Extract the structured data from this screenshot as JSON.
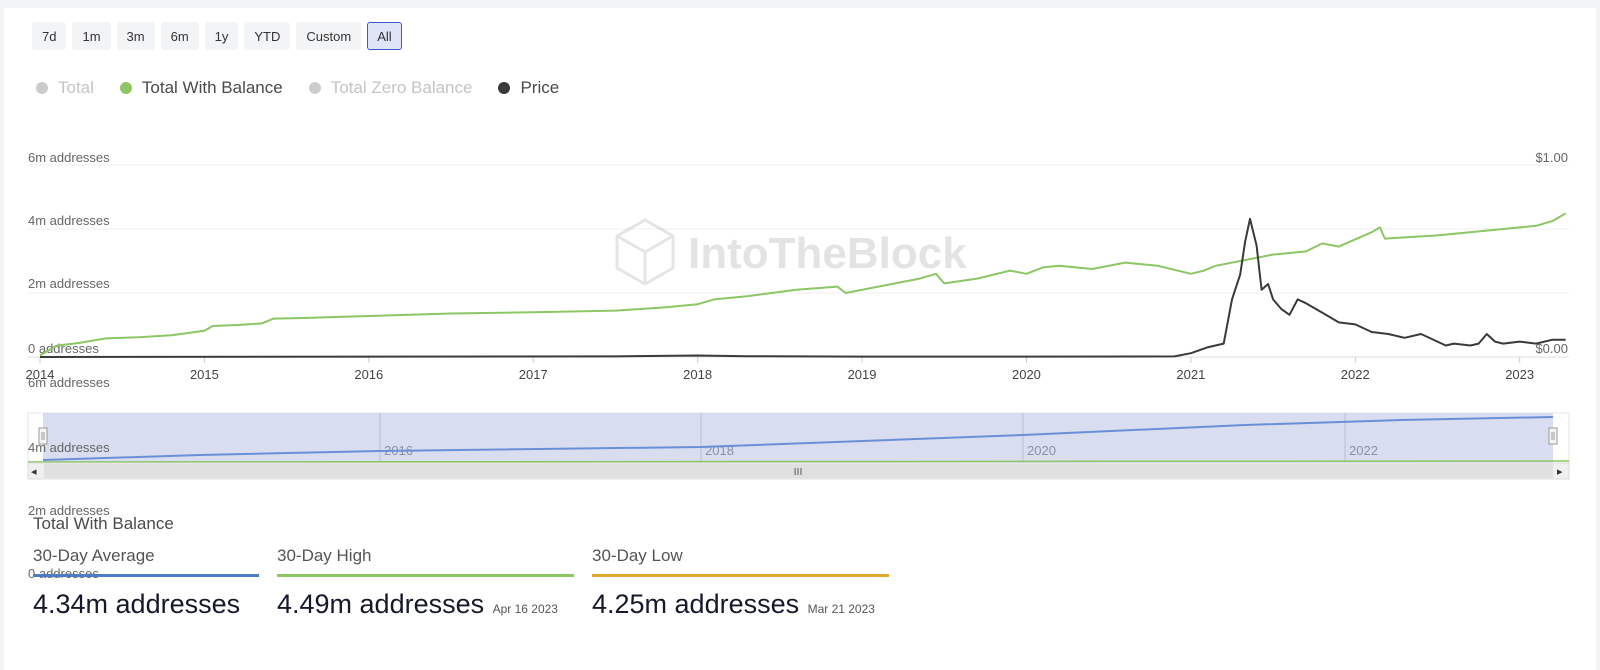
{
  "range_buttons": [
    {
      "label": "7d",
      "active": false
    },
    {
      "label": "1m",
      "active": false
    },
    {
      "label": "3m",
      "active": false
    },
    {
      "label": "6m",
      "active": false
    },
    {
      "label": "1y",
      "active": false
    },
    {
      "label": "YTD",
      "active": false
    },
    {
      "label": "Custom",
      "active": false
    },
    {
      "label": "All",
      "active": true
    }
  ],
  "legend": [
    {
      "label": "Total",
      "enabled": false,
      "color": "#cccccc"
    },
    {
      "label": "Total With Balance",
      "enabled": true,
      "color": "#8cc665"
    },
    {
      "label": "Total Zero Balance",
      "enabled": false,
      "color": "#cccccc"
    },
    {
      "label": "Price",
      "enabled": true,
      "color": "#3a3a3a"
    }
  ],
  "watermark": "IntoTheBlock",
  "navigator_labels": {
    "years": [
      "2016",
      "2018",
      "2020",
      "2022"
    ],
    "ghost_axis": [
      "6m addresses",
      "4m addresses",
      "2m addresses",
      "0 addresses"
    ],
    "scroll_grip": "III",
    "left_arrow": "◂",
    "right_arrow": "▸"
  },
  "stats": {
    "title": "Total With Balance",
    "items": [
      {
        "label": "30-Day Average",
        "value": "4.34m addresses",
        "date": "",
        "color": "#4c7cc4"
      },
      {
        "label": "30-Day High",
        "value": "4.49m addresses",
        "date": "Apr 16 2023",
        "color": "#8cc665"
      },
      {
        "label": "30-Day Low",
        "value": "4.25m addresses",
        "date": "Mar 21 2023",
        "color": "#e0a82e"
      }
    ]
  },
  "chart_data": {
    "type": "line",
    "title": "",
    "xlabel": "",
    "x_ticks": [
      "2014",
      "2015",
      "2016",
      "2017",
      "2018",
      "2019",
      "2020",
      "2021",
      "2022",
      "2023"
    ],
    "x_range": [
      2014,
      2023.3
    ],
    "y_left": {
      "ticks": [
        "0 addresses",
        "2m addresses",
        "4m addresses",
        "6m addresses"
      ],
      "range": [
        0,
        6
      ]
    },
    "y_right": {
      "ticks": [
        "$0.00",
        "$1.00"
      ],
      "range": [
        0,
        1
      ]
    },
    "grid": true,
    "series": [
      {
        "name": "Total With Balance",
        "axis": "left",
        "color": "#8cc665",
        "points": [
          [
            2014.0,
            0.05
          ],
          [
            2014.1,
            0.35
          ],
          [
            2014.25,
            0.45
          ],
          [
            2014.4,
            0.58
          ],
          [
            2014.6,
            0.62
          ],
          [
            2014.8,
            0.68
          ],
          [
            2015.0,
            0.82
          ],
          [
            2015.05,
            0.97
          ],
          [
            2015.2,
            1.0
          ],
          [
            2015.35,
            1.05
          ],
          [
            2015.42,
            1.2
          ],
          [
            2015.6,
            1.22
          ],
          [
            2016.0,
            1.28
          ],
          [
            2016.5,
            1.36
          ],
          [
            2017.0,
            1.4
          ],
          [
            2017.5,
            1.45
          ],
          [
            2017.8,
            1.55
          ],
          [
            2018.0,
            1.65
          ],
          [
            2018.1,
            1.8
          ],
          [
            2018.3,
            1.9
          ],
          [
            2018.6,
            2.1
          ],
          [
            2018.85,
            2.2
          ],
          [
            2018.9,
            2.0
          ],
          [
            2019.2,
            2.3
          ],
          [
            2019.35,
            2.45
          ],
          [
            2019.45,
            2.6
          ],
          [
            2019.5,
            2.3
          ],
          [
            2019.7,
            2.45
          ],
          [
            2019.9,
            2.7
          ],
          [
            2020.0,
            2.6
          ],
          [
            2020.1,
            2.8
          ],
          [
            2020.2,
            2.85
          ],
          [
            2020.4,
            2.75
          ],
          [
            2020.6,
            2.95
          ],
          [
            2020.8,
            2.85
          ],
          [
            2021.0,
            2.6
          ],
          [
            2021.08,
            2.7
          ],
          [
            2021.15,
            2.85
          ],
          [
            2021.3,
            3.0
          ],
          [
            2021.5,
            3.2
          ],
          [
            2021.7,
            3.3
          ],
          [
            2021.8,
            3.55
          ],
          [
            2021.9,
            3.45
          ],
          [
            2022.1,
            3.9
          ],
          [
            2022.15,
            4.05
          ],
          [
            2022.18,
            3.7
          ],
          [
            2022.5,
            3.8
          ],
          [
            2022.9,
            4.0
          ],
          [
            2023.1,
            4.1
          ],
          [
            2023.2,
            4.25
          ],
          [
            2023.28,
            4.49
          ]
        ]
      },
      {
        "name": "Price",
        "axis": "right",
        "color": "#3a3a3a",
        "points": [
          [
            2014.0,
            0.0
          ],
          [
            2017.5,
            0.003
          ],
          [
            2018.0,
            0.008
          ],
          [
            2018.3,
            0.004
          ],
          [
            2019.0,
            0.002
          ],
          [
            2020.0,
            0.002
          ],
          [
            2020.9,
            0.003
          ],
          [
            2021.0,
            0.02
          ],
          [
            2021.1,
            0.05
          ],
          [
            2021.2,
            0.07
          ],
          [
            2021.25,
            0.3
          ],
          [
            2021.3,
            0.43
          ],
          [
            2021.33,
            0.6
          ],
          [
            2021.36,
            0.72
          ],
          [
            2021.4,
            0.58
          ],
          [
            2021.43,
            0.35
          ],
          [
            2021.47,
            0.38
          ],
          [
            2021.5,
            0.3
          ],
          [
            2021.55,
            0.25
          ],
          [
            2021.6,
            0.22
          ],
          [
            2021.65,
            0.3
          ],
          [
            2021.7,
            0.28
          ],
          [
            2021.8,
            0.23
          ],
          [
            2021.9,
            0.18
          ],
          [
            2022.0,
            0.17
          ],
          [
            2022.1,
            0.13
          ],
          [
            2022.2,
            0.12
          ],
          [
            2022.3,
            0.1
          ],
          [
            2022.4,
            0.12
          ],
          [
            2022.5,
            0.08
          ],
          [
            2022.55,
            0.06
          ],
          [
            2022.6,
            0.07
          ],
          [
            2022.7,
            0.06
          ],
          [
            2022.75,
            0.07
          ],
          [
            2022.8,
            0.12
          ],
          [
            2022.85,
            0.08
          ],
          [
            2022.9,
            0.07
          ],
          [
            2023.0,
            0.08
          ],
          [
            2023.1,
            0.07
          ],
          [
            2023.2,
            0.09
          ],
          [
            2023.28,
            0.09
          ]
        ]
      }
    ]
  }
}
